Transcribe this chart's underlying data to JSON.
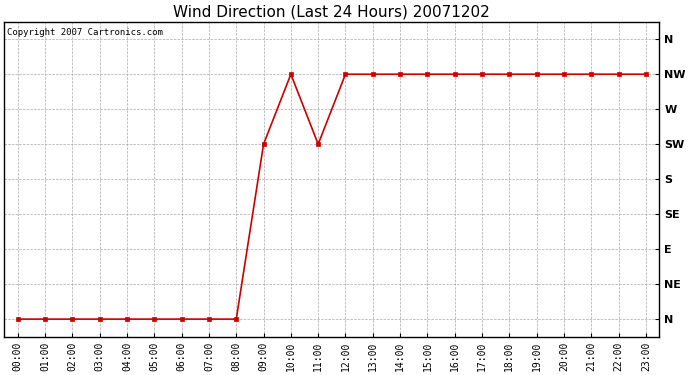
{
  "title": "Wind Direction (Last 24 Hours) 20071202",
  "copyright": "Copyright 2007 Cartronics.com",
  "x_labels": [
    "00:00",
    "01:00",
    "02:00",
    "03:00",
    "04:00",
    "05:00",
    "06:00",
    "07:00",
    "08:00",
    "09:00",
    "10:00",
    "11:00",
    "12:00",
    "13:00",
    "14:00",
    "15:00",
    "16:00",
    "17:00",
    "18:00",
    "19:00",
    "20:00",
    "21:00",
    "22:00",
    "23:00"
  ],
  "y_labels": [
    "N",
    "NE",
    "E",
    "SE",
    "S",
    "SW",
    "W",
    "NW",
    "N"
  ],
  "y_values": [
    0,
    1,
    2,
    3,
    4,
    5,
    6,
    7,
    8
  ],
  "data_values": [
    0,
    0,
    0,
    0,
    0,
    0,
    0,
    0,
    0,
    5,
    7,
    5,
    7,
    7,
    7,
    7,
    7,
    7,
    7,
    7,
    7,
    7,
    7,
    7
  ],
  "line_color": "#cc0000",
  "marker": "s",
  "marker_size": 2.5,
  "bg_color": "#ffffff",
  "plot_bg_color": "#ffffff",
  "grid_color": "#aaaaaa",
  "title_fontsize": 11,
  "copyright_fontsize": 6.5,
  "tick_fontsize": 7,
  "ytick_fontsize": 8
}
